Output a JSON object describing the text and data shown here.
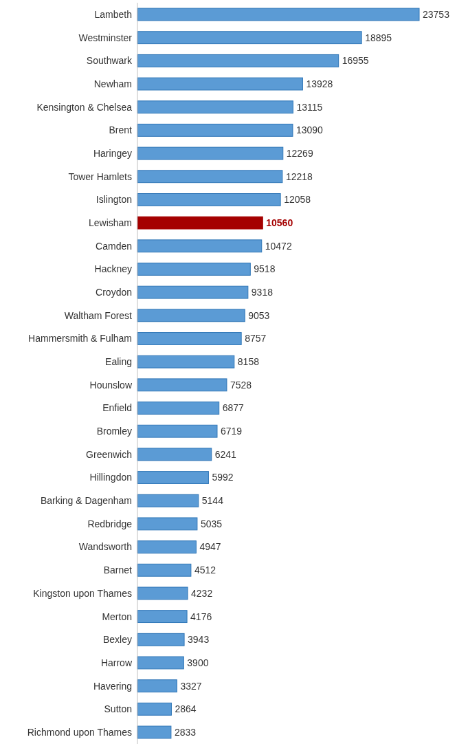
{
  "chart_data": {
    "type": "bar",
    "orientation": "horizontal",
    "data_labels": true,
    "categories": [
      "Lambeth",
      "Westminster",
      "Southwark",
      "Newham",
      "Kensington & Chelsea",
      "Brent",
      "Haringey",
      "Tower Hamlets",
      "Islington",
      "Lewisham",
      "Camden",
      "Hackney",
      "Croydon",
      "Waltham Forest",
      "Hammersmith & Fulham",
      "Ealing",
      "Hounslow",
      "Enfield",
      "Bromley",
      "Greenwich",
      "Hillingdon",
      "Barking & Dagenham",
      "Redbridge",
      "Wandsworth",
      "Barnet",
      "Kingston upon Thames",
      "Merton",
      "Bexley",
      "Harrow",
      "Havering",
      "Sutton",
      "Richmond upon Thames"
    ],
    "values": [
      23753,
      18895,
      16955,
      13928,
      13115,
      13090,
      12269,
      12218,
      12058,
      10560,
      10472,
      9518,
      9318,
      9053,
      8757,
      8158,
      7528,
      6877,
      6719,
      6241,
      5992,
      5144,
      5035,
      4947,
      4512,
      4232,
      4176,
      3943,
      3900,
      3327,
      2864,
      2833
    ],
    "colors": [
      "#5b9bd5",
      "#5b9bd5",
      "#5b9bd5",
      "#5b9bd5",
      "#5b9bd5",
      "#5b9bd5",
      "#5b9bd5",
      "#5b9bd5",
      "#5b9bd5",
      "#a50000",
      "#5b9bd5",
      "#5b9bd5",
      "#5b9bd5",
      "#5b9bd5",
      "#5b9bd5",
      "#5b9bd5",
      "#5b9bd5",
      "#5b9bd5",
      "#5b9bd5",
      "#5b9bd5",
      "#5b9bd5",
      "#5b9bd5",
      "#5b9bd5",
      "#5b9bd5",
      "#5b9bd5",
      "#5b9bd5",
      "#5b9bd5",
      "#5b9bd5",
      "#5b9bd5",
      "#5b9bd5",
      "#5b9bd5",
      "#5b9bd5"
    ]
  }
}
